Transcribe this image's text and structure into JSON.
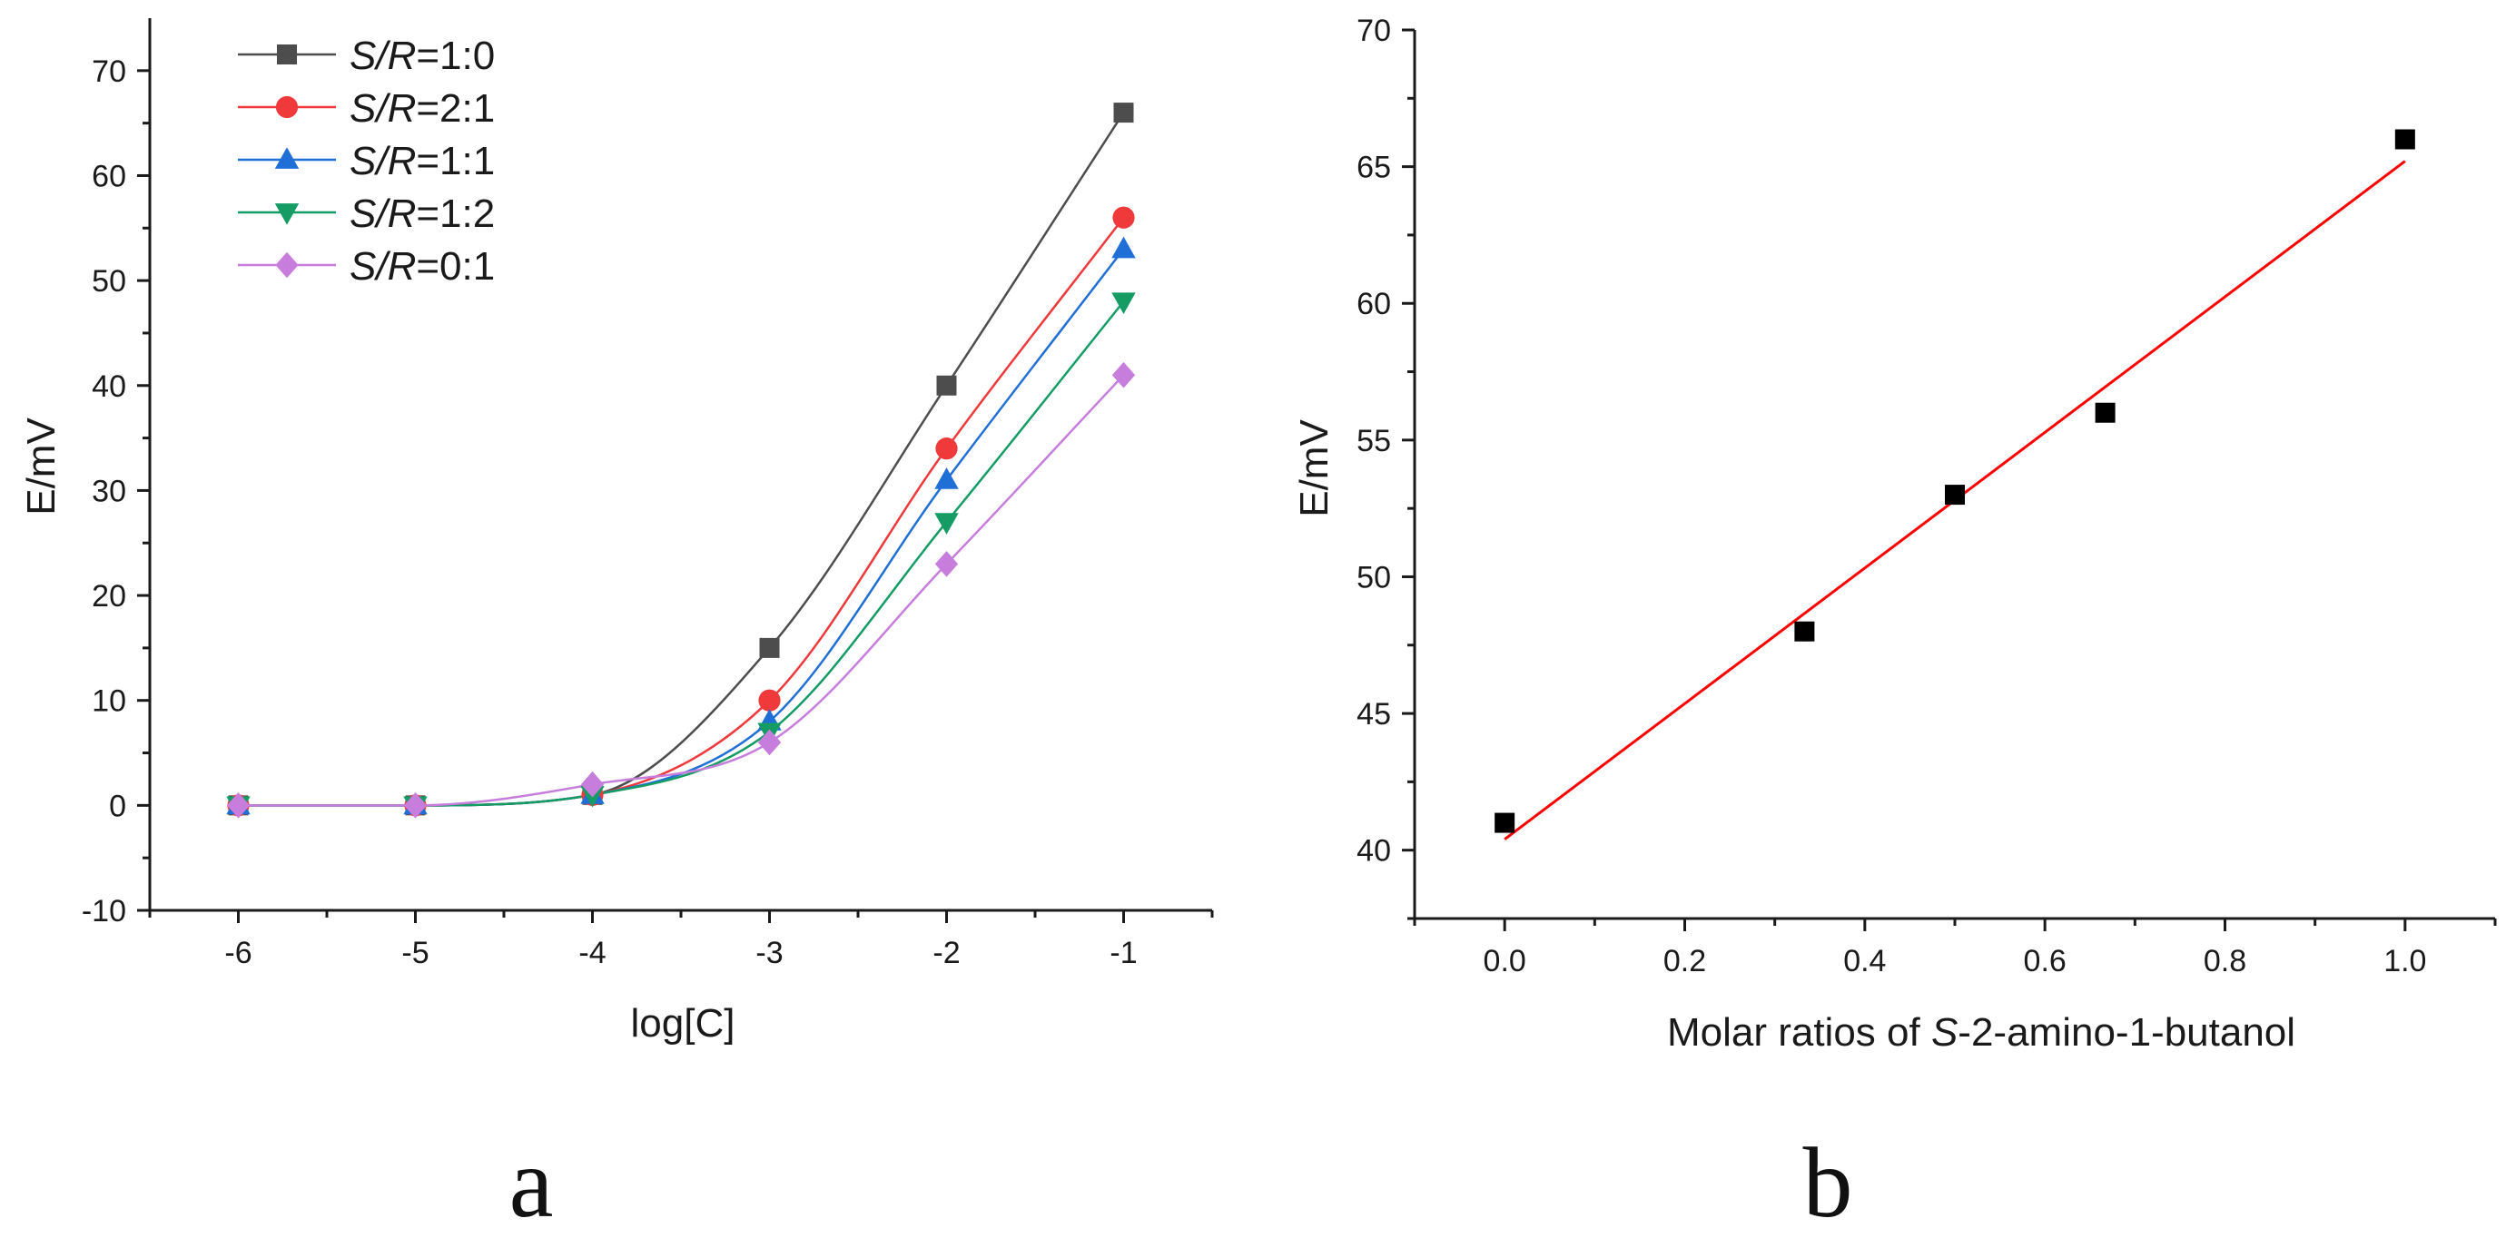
{
  "chart_data": [
    {
      "type": "line",
      "panel_label": "a",
      "xlabel": "log[C]",
      "ylabel": "E/mV",
      "xlim": [
        -6.5,
        -0.5
      ],
      "ylim": [
        -10,
        75
      ],
      "x_ticks": [
        -6,
        -5,
        -4,
        -3,
        -2,
        -1
      ],
      "y_ticks": [
        -10,
        0,
        10,
        20,
        30,
        40,
        50,
        60,
        70
      ],
      "legend_position": "top-left",
      "x": [
        -6,
        -5,
        -4,
        -3,
        -2,
        -1
      ],
      "series": [
        {
          "name_italic": "S/R",
          "name_ratio": "=1:0",
          "color": "#4d4d4d",
          "marker": "square",
          "values": [
            0,
            0,
            1,
            15,
            40,
            66
          ]
        },
        {
          "name_italic": "S/R",
          "name_ratio": "=2:1",
          "color": "#f0393b",
          "marker": "circle",
          "values": [
            0,
            0,
            1,
            10,
            34,
            56
          ]
        },
        {
          "name_italic": "S/R",
          "name_ratio": "=1:1",
          "color": "#1f6fd6",
          "marker": "triangle-up",
          "values": [
            0,
            0,
            1,
            8,
            31,
            53
          ]
        },
        {
          "name_italic": "S/R",
          "name_ratio": "=1:2",
          "color": "#149c64",
          "marker": "triangle-down",
          "values": [
            0,
            0,
            1,
            7,
            27,
            48
          ]
        },
        {
          "name_italic": "S/R",
          "name_ratio": "=0:1",
          "color": "#c77ddb",
          "marker": "diamond",
          "values": [
            0,
            0,
            2,
            6,
            23,
            41
          ]
        }
      ]
    },
    {
      "type": "scatter",
      "panel_label": "b",
      "xlabel_prefix": "Molar ratios of ",
      "xlabel_italic": "S",
      "xlabel_suffix": "-2-amino-1-butanol",
      "ylabel": "E/mV",
      "xlim": [
        -0.1,
        1.1
      ],
      "ylim": [
        37.5,
        70
      ],
      "x_ticks": [
        "0.0",
        "0.2",
        "0.4",
        "0.6",
        "0.8",
        "1.0"
      ],
      "y_ticks": [
        "40",
        "45",
        "50",
        "55",
        "60",
        "65",
        "70"
      ],
      "points_color": "#000000",
      "fit_color": "#ff0000",
      "x": [
        0,
        0.333,
        0.5,
        0.667,
        1.0
      ],
      "y": [
        41,
        48,
        53,
        56,
        66
      ],
      "fit_line": {
        "x": [
          0,
          1.0
        ],
        "y": [
          40.4,
          65.2
        ]
      }
    }
  ]
}
